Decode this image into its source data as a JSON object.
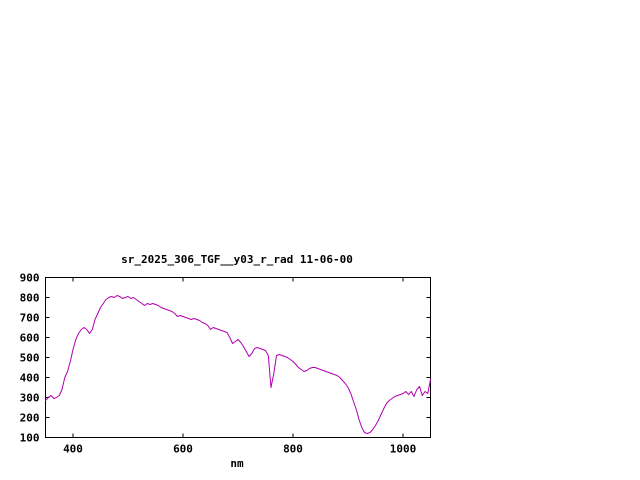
{
  "window": {
    "background_color": "#ffffff",
    "foreground_color": "#000000"
  },
  "chart_data": {
    "type": "line",
    "title": "sr_2025_306_TGF__y03_r_rad 11-06-00",
    "xlabel": "nm",
    "ylabel": "",
    "xlim": [
      350,
      1050
    ],
    "ylim": [
      100,
      900
    ],
    "x_ticks": [
      400,
      600,
      800,
      1000
    ],
    "y_ticks": [
      100,
      200,
      300,
      400,
      500,
      600,
      700,
      800,
      900
    ],
    "grid": false,
    "legend": "none",
    "line_color": "#b000b0",
    "axis_color": "#000000",
    "series": [
      {
        "name": "sr_2025_306_TGF__y03_r_rad 11-06-00",
        "x": [
          350,
          355,
          360,
          365,
          370,
          375,
          380,
          385,
          390,
          395,
          400,
          405,
          410,
          415,
          420,
          425,
          430,
          435,
          440,
          445,
          450,
          455,
          460,
          465,
          470,
          475,
          480,
          485,
          490,
          495,
          500,
          505,
          510,
          515,
          520,
          525,
          530,
          535,
          540,
          545,
          550,
          555,
          560,
          565,
          570,
          575,
          580,
          585,
          590,
          595,
          600,
          605,
          610,
          615,
          620,
          625,
          630,
          635,
          640,
          645,
          650,
          655,
          660,
          665,
          670,
          675,
          680,
          685,
          690,
          695,
          700,
          705,
          710,
          715,
          720,
          725,
          730,
          735,
          740,
          745,
          750,
          755,
          760,
          765,
          770,
          775,
          780,
          785,
          790,
          795,
          800,
          805,
          810,
          815,
          820,
          825,
          830,
          835,
          840,
          845,
          850,
          855,
          860,
          865,
          870,
          875,
          880,
          885,
          890,
          895,
          900,
          905,
          910,
          915,
          920,
          925,
          930,
          935,
          940,
          945,
          950,
          955,
          960,
          965,
          970,
          975,
          980,
          985,
          990,
          995,
          1000,
          1005,
          1010,
          1015,
          1020,
          1025,
          1030,
          1035,
          1040,
          1045,
          1050
        ],
        "y": [
          285,
          300,
          310,
          295,
          300,
          310,
          340,
          400,
          430,
          480,
          540,
          590,
          620,
          640,
          650,
          640,
          620,
          640,
          690,
          720,
          750,
          770,
          790,
          800,
          805,
          800,
          810,
          805,
          795,
          800,
          805,
          795,
          800,
          790,
          780,
          770,
          760,
          770,
          765,
          770,
          765,
          760,
          750,
          745,
          740,
          735,
          730,
          720,
          705,
          710,
          705,
          700,
          695,
          690,
          695,
          690,
          685,
          675,
          670,
          660,
          640,
          650,
          645,
          640,
          635,
          630,
          625,
          600,
          570,
          580,
          590,
          575,
          555,
          530,
          505,
          520,
          545,
          550,
          545,
          540,
          535,
          510,
          350,
          420,
          510,
          515,
          510,
          505,
          500,
          490,
          480,
          465,
          450,
          440,
          430,
          435,
          445,
          450,
          450,
          445,
          440,
          435,
          430,
          425,
          420,
          415,
          410,
          400,
          385,
          370,
          350,
          320,
          280,
          240,
          190,
          150,
          125,
          120,
          125,
          140,
          160,
          185,
          215,
          245,
          270,
          285,
          295,
          305,
          310,
          315,
          320,
          330,
          315,
          330,
          305,
          340,
          355,
          310,
          330,
          320,
          390
        ]
      }
    ]
  }
}
